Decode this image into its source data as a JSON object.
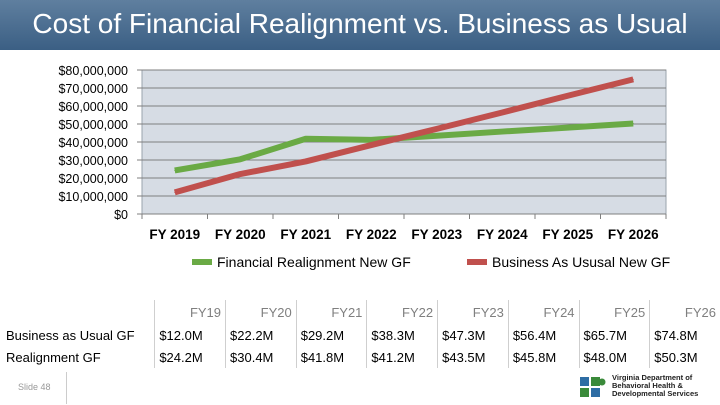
{
  "slide": {
    "title": "Cost of Financial Realignment vs. Business as Usual",
    "slide_number": "Slide 48"
  },
  "logo": {
    "line1": "Virginia Department of",
    "line2": "Behavioral Health &",
    "line3": "Developmental Services"
  },
  "colors": {
    "realignment": "#6aaa45",
    "business": "#c0504d",
    "plot_bg": "#d6dce4",
    "title_bar": "#4a6d92"
  },
  "chart_data": {
    "type": "line",
    "title": "Cost of Financial Realignment vs. Business as Usual",
    "categories": [
      "FY 2019",
      "FY 2020",
      "FY 2021",
      "FY 2022",
      "FY 2023",
      "FY 2024",
      "FY 2025",
      "FY 2026"
    ],
    "y_ticks": [
      "$80,000,000",
      "$70,000,000",
      "$60,000,000",
      "$50,000,000",
      "$40,000,000",
      "$30,000,000",
      "$20,000,000",
      "$10,000,000",
      "$0"
    ],
    "ylim": [
      0,
      80000000
    ],
    "grid": true,
    "legend_position": "bottom",
    "series": [
      {
        "name": "Financial Realignment New GF",
        "values": [
          24200000,
          30400000,
          41800000,
          41200000,
          43500000,
          45800000,
          48000000,
          50300000
        ]
      },
      {
        "name": "Business As Ususal New GF",
        "values": [
          12000000,
          22200000,
          29200000,
          38300000,
          47300000,
          56400000,
          65700000,
          74800000
        ]
      }
    ]
  },
  "table": {
    "headers": [
      "FY19",
      "FY20",
      "FY21",
      "FY22",
      "FY23",
      "FY24",
      "FY25",
      "FY26"
    ],
    "rows": [
      {
        "label": "Business as Usual GF",
        "values": [
          "$12.0M",
          "$22.2M",
          "$29.2M",
          "$38.3M",
          "$47.3M",
          "$56.4M",
          "$65.7M",
          "$74.8M"
        ]
      },
      {
        "label": "Realignment GF",
        "values": [
          "$24.2M",
          "$30.4M",
          "$41.8M",
          "$41.2M",
          "$43.5M",
          "$45.8M",
          "$48.0M",
          "$50.3M"
        ]
      }
    ]
  }
}
